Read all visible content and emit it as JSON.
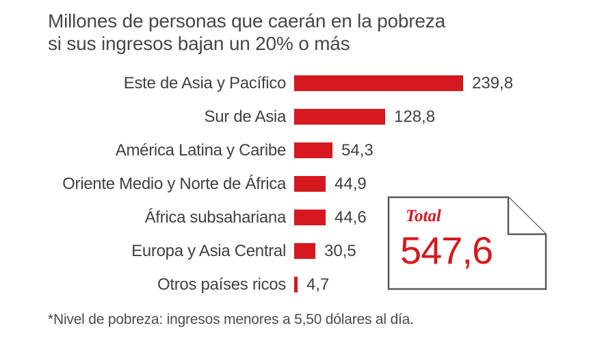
{
  "title": {
    "line1": "Millones de personas que caerán en la pobreza",
    "line2": "si sus ingresos bajan un 20% o más"
  },
  "chart_data": {
    "type": "bar",
    "orientation": "horizontal",
    "title": "Millones de personas que caerán en la pobreza si sus ingresos bajan un 20% o más",
    "categories": [
      "Este de Asia y Pacífico",
      "Sur de Asia",
      "América Latina y Caribe",
      "Oriente Medio y Norte de África",
      "África subsahariana",
      "Europa y Asia Central",
      "Otros países ricos"
    ],
    "values": [
      239.8,
      128.8,
      54.3,
      44.9,
      44.6,
      30.5,
      4.7
    ],
    "value_labels": [
      "239,8",
      "128,8",
      "54,3",
      "44,9",
      "44,6",
      "30,5",
      "4,7"
    ],
    "xlim": [
      0,
      240
    ],
    "grid": false,
    "legend": false,
    "bar_color": "#d6181f",
    "total": 547.6
  },
  "total_box": {
    "label": "Total",
    "value": "547,6"
  },
  "footnote": "*Nivel de pobreza: ingresos menores a 5,50 dólares al día.",
  "colors": {
    "accent_red": "#d6181f",
    "text_dark": "#474747",
    "label_text": "#414141",
    "box_border": "#57585a",
    "background": "#ffffff"
  }
}
